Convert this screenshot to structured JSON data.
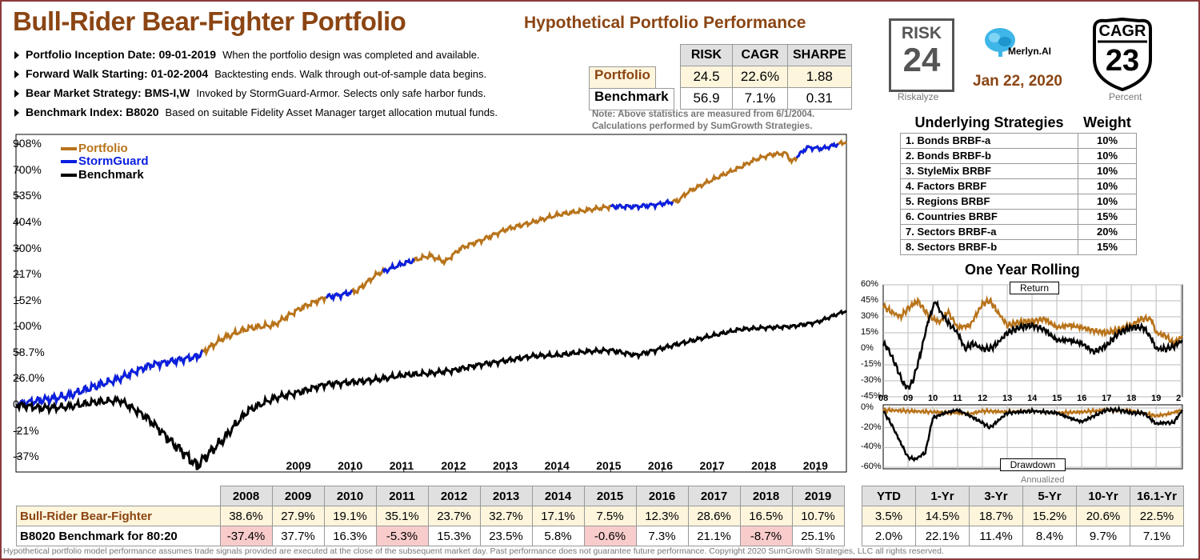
{
  "title": "Bull-Rider Bear-Fighter Portfolio",
  "subtitle": "Hypothetical Portfolio Performance",
  "info": [
    {
      "label": "Portfolio Inception Date: 09-01-2019",
      "desc": "When the portfolio design was completed and available."
    },
    {
      "label": "Forward Walk Starting: 01-02-2004",
      "desc": "Backtesting ends. Walk through out-of-sample data begins."
    },
    {
      "label": "Bear Market Strategy: BMS-I,W",
      "desc": "Invoked by StormGuard-Armor. Selects only safe harbor funds."
    },
    {
      "label": "Benchmark Index: B8020",
      "desc": "Based on suitable Fidelity Asset Manager target allocation mutual funds."
    }
  ],
  "stats": {
    "headers": [
      "RISK",
      "CAGR",
      "SHARPE"
    ],
    "portfolio": {
      "label": "Portfolio",
      "values": [
        "24.5",
        "22.6%",
        "1.88"
      ]
    },
    "benchmark": {
      "label": "Benchmark",
      "values": [
        "56.9",
        "7.1%",
        "0.31"
      ]
    },
    "note1": "Note: Above statistics are measured from 6/1/2004.",
    "note2": "Calculations performed by SumGrowth Strategies."
  },
  "risk_badge": {
    "label": "RISK",
    "value": "24",
    "caption": "Riskalyze"
  },
  "brand": "Merlyn.AI",
  "date": "Jan 22, 2020",
  "cagr_badge": {
    "label": "CAGR",
    "value": "23",
    "caption": "Percent"
  },
  "strategies": {
    "title": "Underlying Strategies",
    "weight_label": "Weight",
    "items": [
      {
        "name": "1. Bonds BRBF-a",
        "weight": "10%"
      },
      {
        "name": "2. Bonds BRBF-b",
        "weight": "10%"
      },
      {
        "name": "3. StyleMix BRBF",
        "weight": "10%"
      },
      {
        "name": "4. Factors BRBF",
        "weight": "10%"
      },
      {
        "name": "5. Regions BRBF",
        "weight": "10%"
      },
      {
        "name": "6. Countries BRBF",
        "weight": "15%"
      },
      {
        "name": "7. Sectors BRBF-a",
        "weight": "20%"
      },
      {
        "name": "8. Sectors BRBF-b",
        "weight": "15%"
      }
    ]
  },
  "chart_data": [
    {
      "type": "line",
      "legend": [
        "Portfolio",
        "StormGuard",
        "Benchmark"
      ],
      "y_tick_labels": [
        "908%",
        "700%",
        "535%",
        "404%",
        "300%",
        "217%",
        "152%",
        "100%",
        "58.7%",
        "26.0%",
        "0",
        "-21%",
        "-37%"
      ],
      "y_tick_values": [
        908,
        700,
        535,
        404,
        300,
        217,
        152,
        100,
        58.7,
        26.0,
        0,
        -21,
        -37
      ],
      "scale": "log",
      "x_tick_labels": [
        "2009",
        "2010",
        "2011",
        "2012",
        "2013",
        "2014",
        "2015",
        "2016",
        "2017",
        "2018",
        "2019"
      ],
      "xlim": [
        2004.0,
        2020.06
      ],
      "series": [
        {
          "name": "Portfolio",
          "color": "#b8731a",
          "x": [
            2004.0,
            2005.0,
            2006.0,
            2006.6,
            2007.5,
            2008.0,
            2008.5,
            2009.0,
            2009.5,
            2010.0,
            2010.3,
            2010.6,
            2011.0,
            2011.5,
            2012.0,
            2012.3,
            2012.6,
            2013.0,
            2013.5,
            2014.0,
            2014.5,
            2015.0,
            2015.5,
            2016.0,
            2016.4,
            2016.8,
            2017.0,
            2017.5,
            2018.0,
            2018.3,
            2018.6,
            2018.9,
            2019.0,
            2019.3,
            2019.6,
            2020.06
          ],
          "y": [
            0,
            8,
            26,
            42,
            53,
            80,
            97,
            103,
            135,
            160,
            165,
            175,
            220,
            250,
            275,
            255,
            300,
            330,
            375,
            405,
            440,
            460,
            480,
            480,
            490,
            510,
            560,
            640,
            720,
            780,
            820,
            830,
            760,
            880,
            870,
            930
          ]
        },
        {
          "name": "StormGuard",
          "color": "#0a1fe0",
          "segments": [
            [
              2004.0,
              2007.6
            ],
            [
              2010.0,
              2010.5
            ],
            [
              2011.1,
              2011.7
            ],
            [
              2015.5,
              2016.7
            ],
            [
              2019.1,
              2019.9
            ]
          ]
        },
        {
          "name": "Benchmark",
          "color": "#000000",
          "x": [
            2004.0,
            2004.5,
            2005.0,
            2005.5,
            2006.0,
            2006.5,
            2007.0,
            2007.5,
            2008.0,
            2008.5,
            2009.0,
            2009.5,
            2010.0,
            2010.5,
            2011.0,
            2011.5,
            2012.0,
            2012.5,
            2013.0,
            2013.5,
            2014.0,
            2014.5,
            2015.0,
            2015.5,
            2016.0,
            2016.5,
            2017.0,
            2017.5,
            2018.0,
            2018.5,
            2019.0,
            2019.5,
            2020.06
          ],
          "y": [
            0,
            -3,
            -2,
            2,
            4,
            -10,
            -28,
            -42,
            -27,
            -5,
            6,
            12,
            20,
            22,
            25,
            30,
            32,
            36,
            43,
            48,
            54,
            55,
            60,
            62,
            55,
            65,
            75,
            85,
            95,
            98,
            100,
            108,
            130
          ]
        }
      ]
    },
    {
      "type": "line",
      "title": "One Year Rolling",
      "panel_label": "Return",
      "y_tick_labels": [
        "60%",
        "45%",
        "30%",
        "15%",
        "0%",
        "-15%",
        "-30%",
        "-45%"
      ],
      "ylim": [
        -45,
        60
      ],
      "x_tick_labels": [
        "08",
        "09",
        "10",
        "11",
        "12",
        "13",
        "14",
        "15",
        "16",
        "17",
        "18",
        "19",
        "2"
      ],
      "xlim": [
        2008.0,
        2020.06
      ],
      "series": [
        {
          "name": "Portfolio",
          "color": "#b8731a",
          "x": [
            2008.0,
            2008.3,
            2008.7,
            2009.0,
            2009.4,
            2009.7,
            2010.0,
            2010.3,
            2010.6,
            2011.0,
            2011.5,
            2012.0,
            2012.3,
            2012.6,
            2013.0,
            2013.5,
            2014.0,
            2014.5,
            2015.0,
            2015.5,
            2016.0,
            2016.5,
            2017.0,
            2017.5,
            2018.0,
            2018.4,
            2018.8,
            2019.0,
            2019.4,
            2019.7,
            2020.06
          ],
          "y": [
            40,
            35,
            30,
            38,
            45,
            35,
            28,
            25,
            35,
            20,
            22,
            42,
            45,
            35,
            22,
            25,
            26,
            28,
            20,
            22,
            20,
            17,
            15,
            18,
            22,
            28,
            28,
            15,
            12,
            5,
            12
          ]
        },
        {
          "name": "Benchmark",
          "color": "#000000",
          "x": [
            2008.0,
            2008.2,
            2008.5,
            2008.8,
            2009.0,
            2009.2,
            2009.5,
            2009.8,
            2010.1,
            2010.3,
            2010.6,
            2011.0,
            2011.3,
            2011.6,
            2012.0,
            2012.3,
            2012.6,
            2013.0,
            2013.5,
            2014.0,
            2014.5,
            2015.0,
            2015.5,
            2016.0,
            2016.5,
            2017.0,
            2017.5,
            2018.0,
            2018.5,
            2018.8,
            2019.0,
            2019.4,
            2019.7,
            2020.06
          ],
          "y": [
            5,
            0,
            -15,
            -32,
            -37,
            -30,
            -5,
            25,
            45,
            35,
            25,
            15,
            0,
            5,
            0,
            0,
            5,
            15,
            20,
            22,
            18,
            8,
            8,
            5,
            -3,
            3,
            15,
            20,
            20,
            10,
            0,
            0,
            2,
            8
          ]
        }
      ]
    },
    {
      "type": "line",
      "panel_label": "Drawdown",
      "y_tick_labels": [
        "0%",
        "-20%",
        "-40%",
        "-60%"
      ],
      "ylim": [
        -60,
        0
      ],
      "xlim": [
        2008.0,
        2020.06
      ],
      "series": [
        {
          "name": "Portfolio",
          "color": "#b8731a",
          "x": [
            2008.0,
            2009.0,
            2010.0,
            2011.0,
            2011.5,
            2012.0,
            2013.0,
            2014.0,
            2015.0,
            2016.0,
            2017.0,
            2018.0,
            2019.0,
            2019.5,
            2020.06
          ],
          "y": [
            -2,
            -3,
            -4,
            -5,
            -6,
            -3,
            -4,
            -3,
            -5,
            -4,
            -2,
            -3,
            -8,
            -6,
            -2
          ]
        },
        {
          "name": "Benchmark",
          "color": "#000000",
          "x": [
            2008.0,
            2008.3,
            2008.6,
            2009.0,
            2009.3,
            2009.7,
            2010.0,
            2010.5,
            2011.0,
            2011.5,
            2012.0,
            2012.3,
            2013.0,
            2014.0,
            2015.0,
            2015.5,
            2016.0,
            2016.5,
            2017.0,
            2017.5,
            2018.0,
            2018.5,
            2019.0,
            2019.3,
            2019.7,
            2020.06
          ],
          "y": [
            -3,
            -15,
            -30,
            -50,
            -52,
            -45,
            -10,
            -5,
            -2,
            -8,
            -15,
            -20,
            -5,
            -3,
            -5,
            -10,
            -14,
            -8,
            -2,
            -2,
            -5,
            -5,
            -16,
            -15,
            -15,
            -2
          ]
        }
      ]
    },
    {
      "type": "table",
      "columns": [
        "2008",
        "2009",
        "2010",
        "2011",
        "2012",
        "2013",
        "2014",
        "2015",
        "2016",
        "2017",
        "2018",
        "2019"
      ],
      "rows": [
        {
          "name": "Bull-Rider Bear-Fighter",
          "values": [
            "38.6%",
            "27.9%",
            "19.1%",
            "35.1%",
            "23.7%",
            "32.7%",
            "17.1%",
            "7.5%",
            "12.3%",
            "28.6%",
            "16.5%",
            "10.7%"
          ]
        },
        {
          "name": "B8020 Benchmark for 80:20",
          "values": [
            "-37.4%",
            "37.7%",
            "16.3%",
            "-5.3%",
            "15.3%",
            "23.5%",
            "5.8%",
            "-0.6%",
            "7.3%",
            "21.1%",
            "-8.7%",
            "25.1%"
          ]
        }
      ]
    },
    {
      "type": "table",
      "caption": "Annualized",
      "columns": [
        "YTD",
        "1-Yr",
        "3-Yr",
        "5-Yr",
        "10-Yr",
        "16.1-Yr"
      ],
      "rows": [
        {
          "values": [
            "3.5%",
            "14.5%",
            "18.7%",
            "15.2%",
            "20.6%",
            "22.5%"
          ]
        },
        {
          "values": [
            "2.0%",
            "22.1%",
            "11.4%",
            "8.4%",
            "9.7%",
            "7.1%"
          ]
        }
      ]
    }
  ],
  "footer": "Hypothetical portfolio model performance assumes trade signals provided are executed at the close of the subsequent market day. Past performance does not guarantee future performance.  Copyright 2020 SumGrowth Strategies, LLC all rights reserved.",
  "colors": {
    "accent": "#8b4513",
    "portfolio": "#b8731a",
    "stormguard": "#0a1fe0",
    "benchmark": "#000000",
    "negative_bg": "#f9cccc",
    "frame": "#8b3a3a"
  }
}
